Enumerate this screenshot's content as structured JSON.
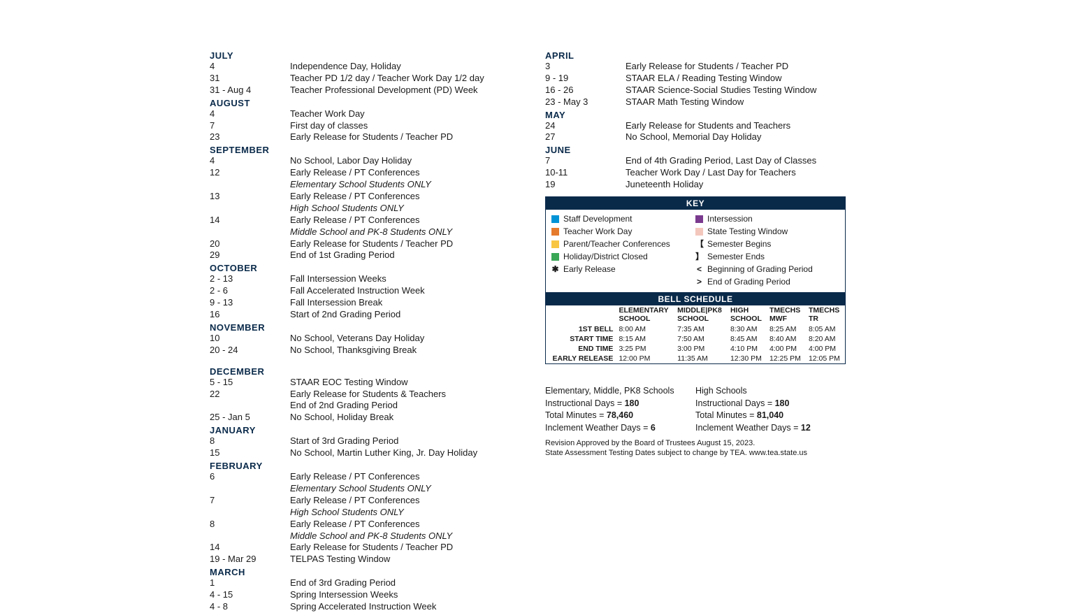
{
  "colors": {
    "heading": "#0a2a4a",
    "keyBg": "#0a2a4a",
    "staffDev": "#0093d6",
    "teacherWork": "#e57b2d",
    "ptConf": "#f9c642",
    "holiday": "#3aa757",
    "intersession": "#7a3a8e",
    "testing": "#f4c7bd"
  },
  "left": [
    {
      "type": "month",
      "text": "JULY"
    },
    {
      "type": "entry",
      "date": "4",
      "desc": "Independence Day, Holiday"
    },
    {
      "type": "entry",
      "date": "31",
      "desc": "Teacher PD 1/2 day / Teacher Work Day 1/2 day"
    },
    {
      "type": "entry",
      "date": "31 - Aug 4",
      "desc": "Teacher Professional Development (PD) Week"
    },
    {
      "type": "month",
      "text": "AUGUST"
    },
    {
      "type": "entry",
      "date": "4",
      "desc": "Teacher Work Day"
    },
    {
      "type": "entry",
      "date": "7",
      "desc": "First day of classes"
    },
    {
      "type": "entry",
      "date": "23",
      "desc": "Early Release for Students / Teacher PD"
    },
    {
      "type": "month",
      "text": "SEPTEMBER"
    },
    {
      "type": "entry",
      "date": "4",
      "desc": "No School, Labor Day Holiday"
    },
    {
      "type": "entry",
      "date": "12",
      "desc": "Early Release / PT Conferences"
    },
    {
      "type": "entry",
      "date": "",
      "desc": "Elementary School Students ONLY",
      "italic": true
    },
    {
      "type": "entry",
      "date": "13",
      "desc": "Early Release / PT Conferences"
    },
    {
      "type": "entry",
      "date": "",
      "desc": "High School Students ONLY",
      "italic": true
    },
    {
      "type": "entry",
      "date": "14",
      "desc": "Early Release / PT Conferences"
    },
    {
      "type": "entry",
      "date": "",
      "desc": "Middle School and PK-8 Students ONLY",
      "italic": true
    },
    {
      "type": "entry",
      "date": "20",
      "desc": "Early Release for Students / Teacher PD"
    },
    {
      "type": "entry",
      "date": "29",
      "desc": "End of 1st Grading Period"
    },
    {
      "type": "month",
      "text": "OCTOBER"
    },
    {
      "type": "entry",
      "date": "2 - 13",
      "desc": "Fall Intersession Weeks"
    },
    {
      "type": "entry",
      "date": "2 - 6",
      "desc": "Fall Accelerated Instruction Week"
    },
    {
      "type": "entry",
      "date": "9 - 13",
      "desc": "Fall Intersession Break"
    },
    {
      "type": "entry",
      "date": "16",
      "desc": "Start of 2nd Grading Period"
    },
    {
      "type": "month",
      "text": "NOVEMBER"
    },
    {
      "type": "entry",
      "date": "10",
      "desc": "No School, Veterans Day Holiday"
    },
    {
      "type": "entry",
      "date": "20 - 24",
      "desc": "No School, Thanksgiving Break"
    },
    {
      "type": "spacer"
    },
    {
      "type": "month",
      "text": "DECEMBER"
    },
    {
      "type": "entry",
      "date": "5 - 15",
      "desc": "STAAR EOC Testing Window"
    },
    {
      "type": "entry",
      "date": "22",
      "desc": "Early Release for Students & Teachers"
    },
    {
      "type": "entry",
      "date": "",
      "desc": "End of 2nd Grading Period"
    },
    {
      "type": "entry",
      "date": "25 - Jan 5",
      "desc": "No School, Holiday Break"
    },
    {
      "type": "month",
      "text": "JANUARY"
    },
    {
      "type": "entry",
      "date": "8",
      "desc": "Start of 3rd Grading Period"
    },
    {
      "type": "entry",
      "date": "15",
      "desc": "No School, Martin Luther King, Jr. Day Holiday"
    },
    {
      "type": "month",
      "text": "FEBRUARY"
    },
    {
      "type": "entry",
      "date": "6",
      "desc": "Early Release / PT Conferences"
    },
    {
      "type": "entry",
      "date": "",
      "desc": "Elementary School Students ONLY",
      "italic": true
    },
    {
      "type": "entry",
      "date": "7",
      "desc": "Early Release / PT Conferences"
    },
    {
      "type": "entry",
      "date": "",
      "desc": "High School Students ONLY",
      "italic": true
    },
    {
      "type": "entry",
      "date": "8",
      "desc": "Early Release / PT Conferences"
    },
    {
      "type": "entry",
      "date": "",
      "desc": "Middle School and PK-8 Students ONLY",
      "italic": true
    },
    {
      "type": "entry",
      "date": "14",
      "desc": "Early Release for Students / Teacher PD"
    },
    {
      "type": "entry",
      "date": "19 -  Mar 29",
      "desc": "TELPAS Testing Window"
    },
    {
      "type": "month",
      "text": "MARCH"
    },
    {
      "type": "entry",
      "date": "1",
      "desc": "End of 3rd Grading Period"
    },
    {
      "type": "entry",
      "date": "4 - 15",
      "desc": "Spring Intersession Weeks"
    },
    {
      "type": "entry",
      "date": "4 - 8",
      "desc": "Spring Accelerated Instruction Week"
    }
  ],
  "right": [
    {
      "type": "month",
      "text": "APRIL"
    },
    {
      "type": "entry",
      "date": "3",
      "desc": "Early Release for Students / Teacher PD"
    },
    {
      "type": "entry",
      "date": "9 - 19",
      "desc": "STAAR ELA / Reading Testing Window"
    },
    {
      "type": "entry",
      "date": "16 - 26",
      "desc": "STAAR Science-Social Studies Testing Window"
    },
    {
      "type": "entry",
      "date": "23 - May 3",
      "desc": "STAAR Math Testing Window"
    },
    {
      "type": "month",
      "text": "MAY"
    },
    {
      "type": "entry",
      "date": "24",
      "desc": "Early Release for Students and Teachers"
    },
    {
      "type": "entry",
      "date": "27",
      "desc": "No School, Memorial Day Holiday"
    },
    {
      "type": "month",
      "text": "JUNE"
    },
    {
      "type": "entry",
      "date": "7",
      "desc": "End of 4th Grading Period, Last Day of Classes"
    },
    {
      "type": "entry",
      "date": "10-11",
      "desc": "Teacher Work Day / Last Day for Teachers"
    },
    {
      "type": "entry",
      "date": "19",
      "desc": "Juneteenth Holiday"
    }
  ],
  "keyTitle": "KEY",
  "keyLeft": [
    {
      "colorKey": "staffDev",
      "label": "Staff Development"
    },
    {
      "colorKey": "teacherWork",
      "label": "Teacher Work Day"
    },
    {
      "colorKey": "ptConf",
      "label": "Parent/Teacher Conferences"
    },
    {
      "colorKey": "holiday",
      "label": "Holiday/District Closed"
    },
    {
      "symbol": "✱",
      "label": "Early Release"
    }
  ],
  "keyRight": [
    {
      "colorKey": "intersession",
      "label": "Intersession"
    },
    {
      "colorKey": "testing",
      "label": "State Testing Window"
    },
    {
      "symbol": "【",
      "label": "Semester Begins"
    },
    {
      "symbol": "】",
      "label": "Semester Ends"
    },
    {
      "symbol": "<",
      "label": "Beginning of Grading Period"
    },
    {
      "symbol": ">",
      "label": "End of Grading Period"
    }
  ],
  "bellTitle": "BELL SCHEDULE",
  "bellHeaders": [
    "",
    "ELEMENTARY SCHOOL",
    "MIDDLE|PK8 SCHOOL",
    "HIGH SCHOOL",
    "TMECHS MWF",
    "TMECHS TR"
  ],
  "bellRows": [
    [
      "1ST BELL",
      "8:00 AM",
      "7:35 AM",
      "8:30 AM",
      "8:25 AM",
      "8:05 AM"
    ],
    [
      "START TIME",
      "8:15 AM",
      "7:50 AM",
      "8:45 AM",
      "8:40 AM",
      "8:20 AM"
    ],
    [
      "END TIME",
      "3:25 PM",
      "3:00 PM",
      "4:10 PM",
      "4:00 PM",
      "4:00 PM"
    ],
    [
      "EARLY RELEASE",
      "12:00 PM",
      "11:35 AM",
      "12:30 PM",
      "12:25 PM",
      "12:05 PM"
    ]
  ],
  "stats": {
    "left": {
      "title": "Elementary, Middle, PK8 Schools",
      "instDaysLabel": "Instructional Days = ",
      "instDays": "180",
      "totMinLabel": "Total Minutes = ",
      "totMin": "78,460",
      "inclLabel": "Inclement Weather Days = ",
      "incl": "6"
    },
    "right": {
      "title": "High Schools",
      "instDaysLabel": "Instructional Days = ",
      "instDays": "180",
      "totMinLabel": "Total Minutes = ",
      "totMin": "81,040",
      "inclLabel": "Inclement Weather Days = ",
      "incl": "12"
    }
  },
  "footnotes": [
    "Revision Approved by the Board of Trustees August 15, 2023.",
    "State Assessment Testing Dates subject to change by TEA. www.tea.state.us"
  ]
}
